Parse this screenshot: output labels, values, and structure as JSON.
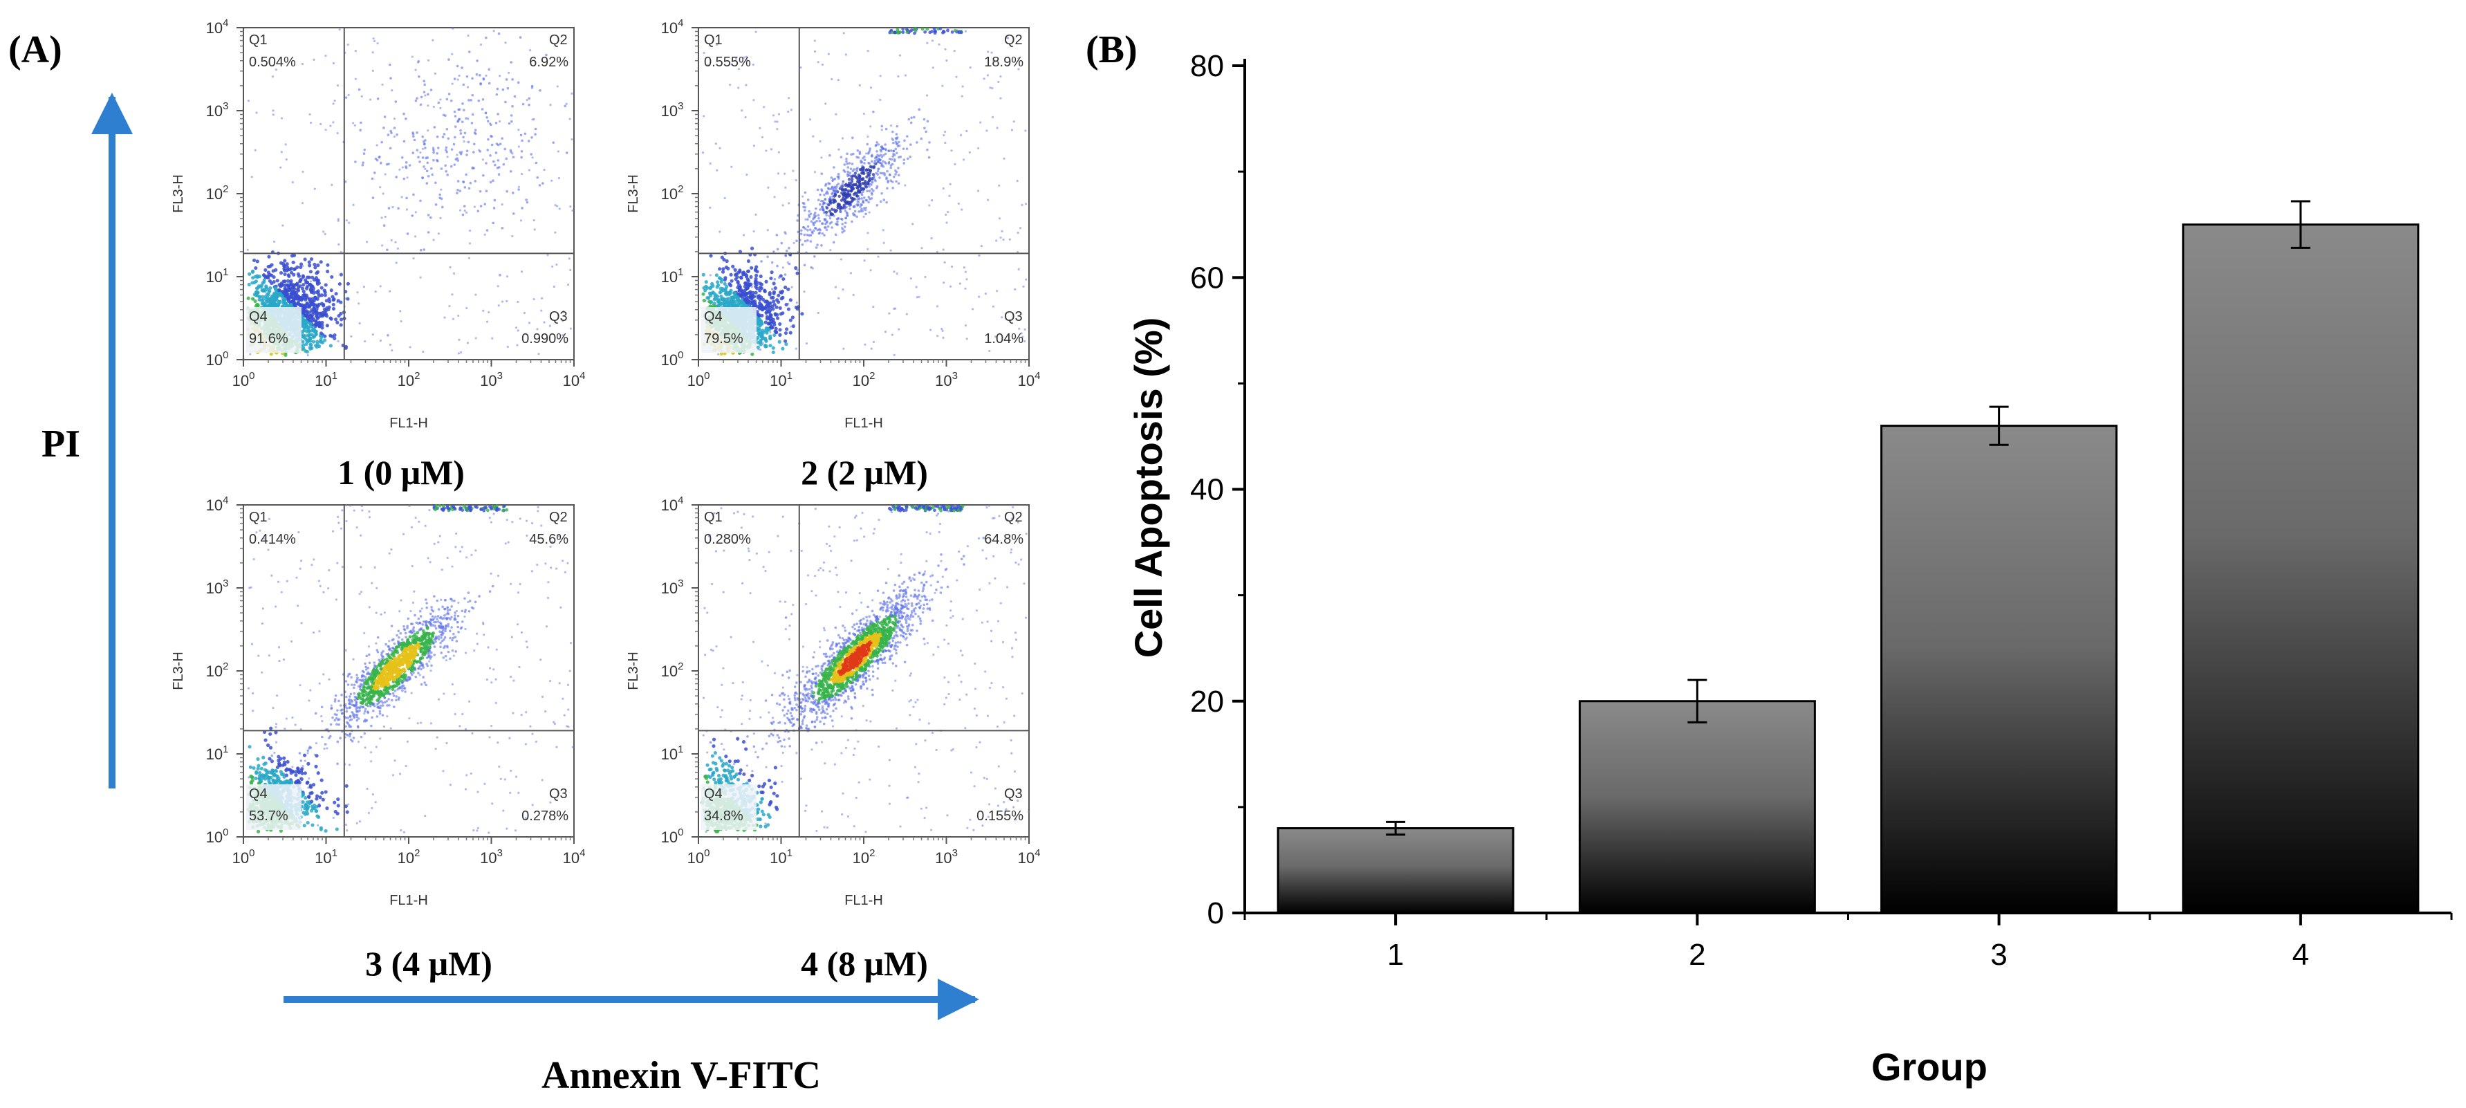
{
  "panel_a": {
    "label": "(A)",
    "y_axis_title": "PI",
    "x_axis_title": "Annexin V-FITC",
    "x_channel": "FL1-H",
    "y_channel": "FL3-H",
    "log_base": "10",
    "tick_exponents": [
      "0",
      "1",
      "2",
      "3",
      "4"
    ],
    "plots": [
      {
        "caption": "1 (0 μM)",
        "quadrants": [
          {
            "name": "Q1",
            "pct": "0.504%"
          },
          {
            "name": "Q2",
            "pct": "6.92%"
          },
          {
            "name": "Q3",
            "pct": "0.990%"
          },
          {
            "name": "Q4",
            "pct": "91.6%"
          }
        ]
      },
      {
        "caption": "2 (2 μM)",
        "quadrants": [
          {
            "name": "Q1",
            "pct": "0.555%"
          },
          {
            "name": "Q2",
            "pct": "18.9%"
          },
          {
            "name": "Q3",
            "pct": "1.04%"
          },
          {
            "name": "Q4",
            "pct": "79.5%"
          }
        ]
      },
      {
        "caption": "3 (4 μM)",
        "quadrants": [
          {
            "name": "Q1",
            "pct": "0.414%"
          },
          {
            "name": "Q2",
            "pct": "45.6%"
          },
          {
            "name": "Q3",
            "pct": "0.278%"
          },
          {
            "name": "Q4",
            "pct": "53.7%"
          }
        ]
      },
      {
        "caption": "4 (8 μM)",
        "quadrants": [
          {
            "name": "Q1",
            "pct": "0.280%"
          },
          {
            "name": "Q2",
            "pct": "64.8%"
          },
          {
            "name": "Q3",
            "pct": "0.155%"
          },
          {
            "name": "Q4",
            "pct": "34.8%"
          }
        ]
      }
    ]
  },
  "chart_data": {
    "type": "bar",
    "panel_label": "(B)",
    "title": "",
    "categories": [
      "1",
      "2",
      "3",
      "4"
    ],
    "values": [
      8,
      20,
      46,
      65
    ],
    "errors": [
      0.6,
      2.0,
      1.8,
      2.2
    ],
    "xlabel": "Group",
    "ylabel": "Cell Apoptosis (%)",
    "ylim": [
      0,
      80
    ],
    "yticks": [
      0,
      20,
      40,
      60,
      80
    ],
    "grid": false,
    "bar_top_color": "#8a8a8a",
    "bar_bottom_color": "#000000"
  }
}
